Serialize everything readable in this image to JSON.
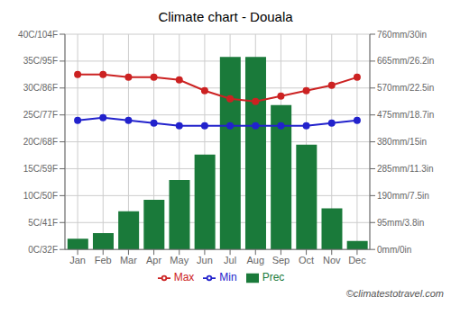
{
  "chart_data": {
    "type": "bar",
    "title": "Climate chart - Douala",
    "categories": [
      "Jan",
      "Feb",
      "Mar",
      "Apr",
      "May",
      "Jun",
      "Jul",
      "Aug",
      "Sep",
      "Oct",
      "Nov",
      "Dec"
    ],
    "series": [
      {
        "name": "Prec",
        "type": "bar",
        "color": "#1a7a3a",
        "axis": "y2",
        "values": [
          38,
          58,
          135,
          175,
          245,
          335,
          680,
          680,
          510,
          370,
          145,
          30
        ]
      },
      {
        "name": "Min",
        "type": "line",
        "color": "#2222cc",
        "marker": "circle",
        "line_style": "solid",
        "values": [
          24,
          24.5,
          24,
          23.5,
          23,
          23,
          23,
          23,
          23,
          23,
          23.5,
          24
        ]
      },
      {
        "name": "Max",
        "type": "line",
        "color": "#cc2222",
        "marker": "circle",
        "line_style": "solid",
        "values": [
          32.5,
          32.5,
          32,
          32,
          31.5,
          29.5,
          28,
          27.5,
          28.5,
          29.5,
          30.5,
          32
        ]
      }
    ],
    "ylim": [
      0,
      40
    ],
    "yticks": [
      {
        "value": 0,
        "label": "0C/32F"
      },
      {
        "value": 5,
        "label": "5C/41F"
      },
      {
        "value": 10,
        "label": "10C/50F"
      },
      {
        "value": 15,
        "label": "15C/59F"
      },
      {
        "value": 20,
        "label": "20C/68F"
      },
      {
        "value": 25,
        "label": "25C/77F"
      },
      {
        "value": 30,
        "label": "30C/86F"
      },
      {
        "value": 35,
        "label": "35C/95F"
      },
      {
        "value": 40,
        "label": "40C/104F"
      }
    ],
    "y2lim": [
      0,
      760
    ],
    "y2ticks": [
      {
        "value": 0,
        "label": "0mm/0in"
      },
      {
        "value": 95,
        "label": "95mm/3.8in"
      },
      {
        "value": 190,
        "label": "190mm/7.5in"
      },
      {
        "value": 285,
        "label": "285mm/11.3in"
      },
      {
        "value": 380,
        "label": "380mm/15in"
      },
      {
        "value": 475,
        "label": "475mm/18.7in"
      },
      {
        "value": 570,
        "label": "570mm/22.5in"
      },
      {
        "value": 665,
        "label": "665mm/26.2in"
      },
      {
        "value": 760,
        "label": "760mm/30in"
      }
    ],
    "grid": true,
    "legend": "bottom",
    "annotations": [
      "©climatestotravel.com"
    ]
  }
}
